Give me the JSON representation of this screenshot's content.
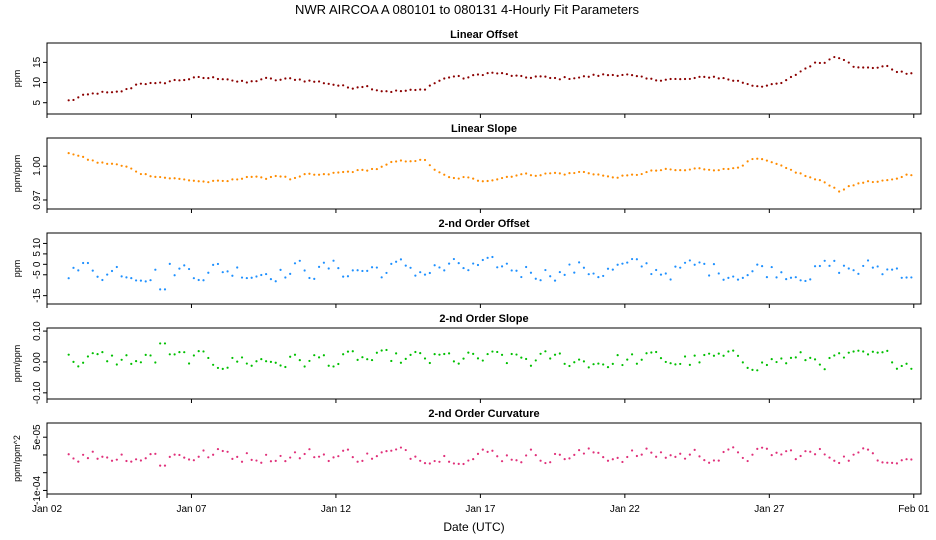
{
  "figure": {
    "title": "NWR   AIRCOA A   080101 to 080131   4-Hourly Fit Parameters",
    "xlabel": "Date (UTC)",
    "x_tick_labels": [
      "Jan 02",
      "Jan 07",
      "Jan 12",
      "Jan 17",
      "Jan 22",
      "Jan 27",
      "Feb 01"
    ]
  },
  "chart_data": [
    {
      "type": "scatter",
      "title": "Linear Offset",
      "ylabel": "ppm",
      "color": "#8b0000",
      "xlim": [
        2.0,
        32.25
      ],
      "ylim": [
        2.2,
        19.8
      ],
      "yticks": [
        5,
        10,
        15
      ],
      "ytick_labels": [
        "5",
        "10",
        "15"
      ],
      "x_units": "day of January 2008 (UTC)",
      "knots": [
        [
          2.8,
          5.5
        ],
        [
          3.3,
          6.8
        ],
        [
          3.8,
          7.5
        ],
        [
          4.3,
          7.4
        ],
        [
          4.8,
          8.3
        ],
        [
          5.2,
          9.9
        ],
        [
          5.8,
          9.6
        ],
        [
          6.3,
          10.4
        ],
        [
          6.8,
          10.8
        ],
        [
          7.3,
          11.2
        ],
        [
          7.8,
          11.1
        ],
        [
          8.2,
          11.0
        ],
        [
          8.6,
          10.2
        ],
        [
          9.0,
          10.0
        ],
        [
          9.5,
          11.0
        ],
        [
          10.0,
          10.6
        ],
        [
          10.5,
          11.0
        ],
        [
          11.0,
          10.4
        ],
        [
          11.5,
          10.1
        ],
        [
          12.0,
          9.4
        ],
        [
          12.5,
          8.7
        ],
        [
          13.0,
          9.2
        ],
        [
          13.5,
          8.0
        ],
        [
          14.0,
          7.8
        ],
        [
          14.6,
          8.0
        ],
        [
          15.0,
          8.2
        ],
        [
          15.5,
          10.2
        ],
        [
          16.0,
          11.6
        ],
        [
          16.5,
          11.1
        ],
        [
          17.0,
          12.1
        ],
        [
          17.5,
          12.4
        ],
        [
          18.0,
          11.9
        ],
        [
          18.5,
          11.2
        ],
        [
          19.0,
          11.5
        ],
        [
          19.5,
          11.0
        ],
        [
          20.0,
          11.1
        ],
        [
          20.5,
          11.3
        ],
        [
          21.0,
          11.8
        ],
        [
          21.5,
          11.9
        ],
        [
          22.0,
          12.0
        ],
        [
          22.5,
          11.3
        ],
        [
          23.0,
          10.6
        ],
        [
          23.5,
          10.9
        ],
        [
          24.0,
          10.7
        ],
        [
          24.5,
          11.1
        ],
        [
          25.0,
          11.5
        ],
        [
          25.5,
          10.9
        ],
        [
          26.0,
          10.2
        ],
        [
          26.5,
          9.2
        ],
        [
          27.0,
          9.2
        ],
        [
          27.5,
          10.0
        ],
        [
          28.0,
          12.4
        ],
        [
          28.5,
          14.6
        ],
        [
          29.0,
          15.3
        ],
        [
          29.3,
          16.6
        ],
        [
          29.7,
          15.5
        ],
        [
          30.0,
          13.6
        ],
        [
          30.5,
          13.6
        ],
        [
          31.0,
          14.1
        ],
        [
          31.5,
          12.6
        ],
        [
          32.0,
          11.9
        ]
      ],
      "noise_amplitude": 0.3
    },
    {
      "type": "scatter",
      "title": "Linear Slope",
      "ylabel": "ppm/ppm",
      "color": "#ff8c00",
      "xlim": [
        2.0,
        32.25
      ],
      "ylim": [
        0.962,
        1.025
      ],
      "yticks": [
        0.97,
        1.0
      ],
      "ytick_labels": [
        "0.97",
        "1.00"
      ],
      "x_units": "day of January 2008 (UTC)",
      "knots": [
        [
          2.8,
          1.012
        ],
        [
          3.3,
          1.007
        ],
        [
          3.8,
          1.003
        ],
        [
          4.3,
          1.002
        ],
        [
          4.8,
          0.999
        ],
        [
          5.3,
          0.993
        ],
        [
          6.0,
          0.99
        ],
        [
          6.8,
          0.988
        ],
        [
          7.5,
          0.986
        ],
        [
          8.3,
          0.987
        ],
        [
          9.0,
          0.991
        ],
        [
          9.5,
          0.989
        ],
        [
          10.0,
          0.992
        ],
        [
          10.5,
          0.988
        ],
        [
          11.0,
          0.993
        ],
        [
          11.5,
          0.992
        ],
        [
          12.0,
          0.994
        ],
        [
          12.8,
          0.996
        ],
        [
          13.5,
          0.998
        ],
        [
          14.0,
          1.004
        ],
        [
          14.6,
          1.005
        ],
        [
          15.1,
          1.005
        ],
        [
          15.5,
          0.995
        ],
        [
          16.0,
          0.989
        ],
        [
          16.5,
          0.99
        ],
        [
          17.0,
          0.987
        ],
        [
          17.5,
          0.988
        ],
        [
          18.0,
          0.991
        ],
        [
          18.5,
          0.993
        ],
        [
          19.0,
          0.992
        ],
        [
          19.5,
          0.994
        ],
        [
          20.0,
          0.993
        ],
        [
          20.5,
          0.995
        ],
        [
          21.0,
          0.993
        ],
        [
          21.5,
          0.99
        ],
        [
          22.0,
          0.991
        ],
        [
          22.5,
          0.993
        ],
        [
          23.0,
          0.996
        ],
        [
          23.5,
          0.997
        ],
        [
          24.0,
          0.996
        ],
        [
          24.5,
          0.998
        ],
        [
          25.0,
          0.997
        ],
        [
          25.5,
          0.997
        ],
        [
          26.0,
          1.0
        ],
        [
          26.5,
          1.007
        ],
        [
          27.0,
          1.004
        ],
        [
          27.5,
          0.999
        ],
        [
          28.0,
          0.994
        ],
        [
          28.5,
          0.989
        ],
        [
          29.0,
          0.985
        ],
        [
          29.4,
          0.978
        ],
        [
          29.8,
          0.982
        ],
        [
          30.2,
          0.986
        ],
        [
          30.8,
          0.986
        ],
        [
          31.3,
          0.988
        ],
        [
          31.7,
          0.992
        ],
        [
          32.0,
          0.993
        ]
      ],
      "noise_amplitude": 0.0008
    },
    {
      "type": "scatter",
      "title": "2-nd Order Offset",
      "ylabel": "ppm",
      "color": "#1e90ff",
      "xlim": [
        2.0,
        32.25
      ],
      "ylim": [
        -19.0,
        15.0
      ],
      "yticks": [
        -15,
        -5,
        0,
        5,
        10
      ],
      "ytick_labels": [
        "-15",
        "-5",
        "0",
        "5",
        "10"
      ],
      "x_units": "day of January 2008 (UTC)",
      "value_range": [
        -12,
        7
      ],
      "spike": {
        "x": 6.0,
        "y": -12
      }
    },
    {
      "type": "scatter",
      "title": "2-nd Order Slope",
      "ylabel": "ppm/ppm",
      "color": "#00c000",
      "xlim": [
        2.0,
        32.25
      ],
      "ylim": [
        -0.12,
        0.11
      ],
      "yticks": [
        -0.1,
        0.0,
        0.1
      ],
      "ytick_labels": [
        "-0.10",
        "0.00",
        "0.10"
      ],
      "x_units": "day of January 2008 (UTC)",
      "value_range": [
        -0.05,
        0.06
      ],
      "spike": {
        "x": 6.0,
        "y": 0.06
      }
    },
    {
      "type": "scatter",
      "title": "2-nd Order Curvature",
      "ylabel": "ppm/ppm^2",
      "color": "#e0307a",
      "xlim": [
        2.0,
        32.25
      ],
      "ylim": [
        -0.00011,
        9e-05
      ],
      "yticks": [
        -0.0001,
        -5e-05,
        0,
        5e-05
      ],
      "ytick_labels": [
        "-1e-04",
        "",
        "",
        "5e-05"
      ],
      "x_units": "day of January 2008 (UTC)",
      "value_range": [
        -4e-05,
        4e-05
      ],
      "spike": {
        "x": 6.0,
        "y": -3e-05
      }
    }
  ]
}
